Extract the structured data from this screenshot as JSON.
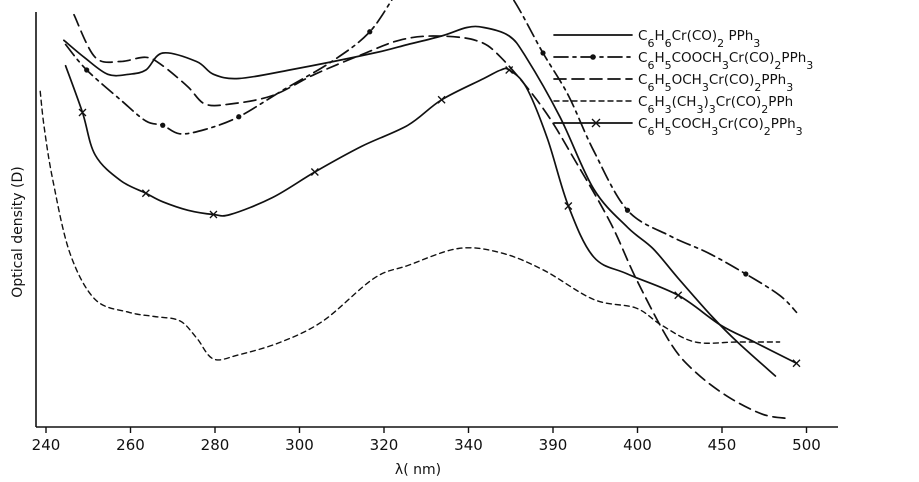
{
  "chart_data": {
    "type": "line",
    "xlabel": "λ( nm)",
    "ylabel": "Optical density (D)",
    "x_tick_labels": [
      "240",
      "260",
      "280",
      "300",
      "320",
      "340",
      "390",
      "400",
      "450",
      "500"
    ],
    "y_range_relative": [
      0,
      1
    ],
    "grid": false,
    "legend_position": "top-right",
    "series": [
      {
        "name": "C6H6Cr(CO)2 PPh3",
        "style": "solid",
        "marker": "none",
        "points": [
          [
            0.33,
            0.91
          ],
          [
            0.57,
            0.87
          ],
          [
            0.85,
            0.83
          ],
          [
            1.1,
            0.83
          ],
          [
            1.3,
            0.84
          ],
          [
            1.5,
            0.88
          ],
          [
            1.9,
            0.86
          ],
          [
            2.1,
            0.83
          ],
          [
            2.4,
            0.82
          ],
          [
            3.0,
            0.84
          ],
          [
            4.0,
            0.88
          ],
          [
            4.4,
            0.9
          ],
          [
            4.8,
            0.92
          ],
          [
            5.1,
            0.94
          ],
          [
            5.3,
            0.94
          ],
          [
            5.6,
            0.92
          ],
          [
            5.8,
            0.87
          ],
          [
            6.2,
            0.73
          ],
          [
            6.6,
            0.56
          ],
          [
            7.0,
            0.47
          ],
          [
            7.3,
            0.42
          ],
          [
            7.6,
            0.35
          ],
          [
            8.0,
            0.26
          ],
          [
            8.3,
            0.2
          ],
          [
            8.75,
            0.12
          ]
        ]
      },
      {
        "name": "C6H5COOCH3Cr(CO)2PPh3",
        "style": "dash-dot",
        "marker": "dot",
        "points": [
          [
            0.35,
            0.9
          ],
          [
            0.6,
            0.84
          ],
          [
            1.0,
            0.77
          ],
          [
            1.3,
            0.72
          ],
          [
            1.5,
            0.71
          ],
          [
            1.7,
            0.69
          ],
          [
            2.0,
            0.7
          ],
          [
            2.4,
            0.73
          ],
          [
            2.9,
            0.79
          ],
          [
            3.5,
            0.86
          ],
          [
            3.95,
            0.93
          ],
          [
            4.3,
            1.03
          ],
          [
            4.6,
            1.09
          ],
          [
            4.97,
            1.12
          ],
          [
            5.2,
            1.1
          ],
          [
            5.6,
            1.02
          ],
          [
            6.0,
            0.88
          ],
          [
            6.3,
            0.78
          ],
          [
            6.6,
            0.65
          ],
          [
            7.0,
            0.51
          ],
          [
            7.5,
            0.45
          ],
          [
            7.95,
            0.41
          ],
          [
            8.4,
            0.36
          ],
          [
            8.8,
            0.31
          ],
          [
            9.0,
            0.27
          ]
        ]
      },
      {
        "name": "C6H5OCH3Cr(CO)2PPh3",
        "style": "dashed",
        "marker": "none",
        "points": [
          [
            0.45,
            0.97
          ],
          [
            0.7,
            0.87
          ],
          [
            1.0,
            0.86
          ],
          [
            1.3,
            0.87
          ],
          [
            1.5,
            0.85
          ],
          [
            1.8,
            0.8
          ],
          [
            2.0,
            0.76
          ],
          [
            2.3,
            0.76
          ],
          [
            2.8,
            0.78
          ],
          [
            3.3,
            0.83
          ],
          [
            3.9,
            0.88
          ],
          [
            4.3,
            0.91
          ],
          [
            4.7,
            0.92
          ],
          [
            5.2,
            0.91
          ],
          [
            5.5,
            0.87
          ],
          [
            6.0,
            0.75
          ],
          [
            6.4,
            0.62
          ],
          [
            6.8,
            0.48
          ],
          [
            7.1,
            0.35
          ],
          [
            7.5,
            0.2
          ],
          [
            7.8,
            0.13
          ],
          [
            8.2,
            0.07
          ],
          [
            8.6,
            0.03
          ],
          [
            8.9,
            0.02
          ]
        ]
      },
      {
        "name": "C6H3(CH3)3Cr(CO)2PPh",
        "style": "short-dash",
        "marker": "none",
        "points": [
          [
            0.05,
            0.79
          ],
          [
            0.1,
            0.7
          ],
          [
            0.2,
            0.58
          ],
          [
            0.4,
            0.41
          ],
          [
            0.7,
            0.3
          ],
          [
            1.1,
            0.27
          ],
          [
            1.4,
            0.26
          ],
          [
            1.7,
            0.25
          ],
          [
            1.9,
            0.21
          ],
          [
            2.1,
            0.16
          ],
          [
            2.4,
            0.17
          ],
          [
            2.9,
            0.2
          ],
          [
            3.4,
            0.25
          ],
          [
            4.0,
            0.35
          ],
          [
            4.4,
            0.38
          ],
          [
            5.0,
            0.42
          ],
          [
            5.5,
            0.41
          ],
          [
            6.0,
            0.37
          ],
          [
            6.6,
            0.3
          ],
          [
            7.1,
            0.28
          ],
          [
            7.4,
            0.24
          ],
          [
            7.8,
            0.2
          ],
          [
            8.3,
            0.2
          ],
          [
            8.8,
            0.2
          ]
        ]
      },
      {
        "name": "C6H5COCH3Cr(CO)2PPh3",
        "style": "solid",
        "marker": "x",
        "points": [
          [
            0.35,
            0.85
          ],
          [
            0.55,
            0.74
          ],
          [
            0.7,
            0.64
          ],
          [
            1.0,
            0.58
          ],
          [
            1.3,
            0.55
          ],
          [
            1.5,
            0.53
          ],
          [
            1.8,
            0.51
          ],
          [
            2.1,
            0.5
          ],
          [
            2.3,
            0.5
          ],
          [
            2.8,
            0.54
          ],
          [
            3.3,
            0.6
          ],
          [
            3.85,
            0.66
          ],
          [
            4.4,
            0.71
          ],
          [
            4.8,
            0.77
          ],
          [
            5.3,
            0.82
          ],
          [
            5.5,
            0.84
          ],
          [
            5.6,
            0.84
          ],
          [
            5.8,
            0.8
          ],
          [
            6.05,
            0.68
          ],
          [
            6.3,
            0.52
          ],
          [
            6.6,
            0.4
          ],
          [
            7.0,
            0.36
          ],
          [
            7.6,
            0.31
          ],
          [
            8.1,
            0.24
          ],
          [
            8.5,
            0.2
          ],
          [
            9.0,
            0.15
          ]
        ]
      }
    ]
  }
}
